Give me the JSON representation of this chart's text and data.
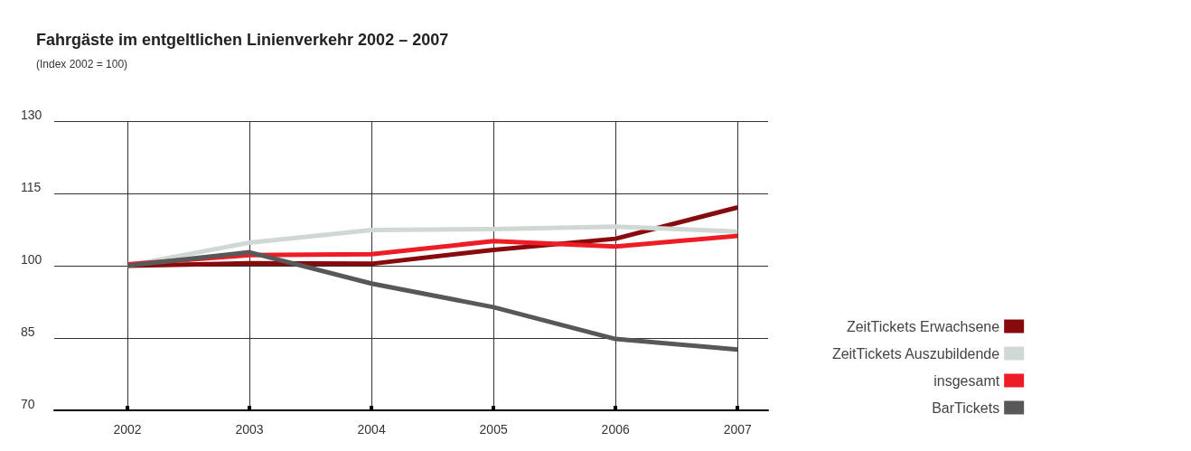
{
  "chart_data": {
    "type": "line",
    "title": "Fahrgäste im entgeltlichen Linienverkehr 2002 – 2007",
    "subtitle": "(Index 2002 = 100)",
    "x": [
      2002,
      2003,
      2004,
      2005,
      2006,
      2007
    ],
    "xlim": [
      2001.4,
      2007.25
    ],
    "xticks": [
      2002,
      2003,
      2004,
      2005,
      2006,
      2007
    ],
    "ylim": [
      70,
      130
    ],
    "yticks": [
      70,
      85,
      100,
      115,
      130
    ],
    "grid": true,
    "legend": "right",
    "marker": "none",
    "line_style": "solid",
    "series": [
      {
        "name": "ZeitTickets Erwachsene",
        "color": "#870a0c",
        "values": [
          100,
          100.5,
          100.4,
          103.3,
          105.6,
          112.1
        ]
      },
      {
        "name": "ZeitTickets Auszubildende",
        "color": "#cfd8d3",
        "values": [
          100,
          104.8,
          107.4,
          107.6,
          108.1,
          107.1
        ]
      },
      {
        "name": "insgesamt",
        "color": "#ee1c25",
        "values": [
          100.3,
          102.2,
          102.4,
          105.1,
          104.0,
          106.2
        ]
      },
      {
        "name": "BarTickets",
        "color": "#58585a",
        "values": [
          100,
          102.8,
          96.3,
          91.4,
          84.8,
          82.6
        ]
      }
    ]
  }
}
